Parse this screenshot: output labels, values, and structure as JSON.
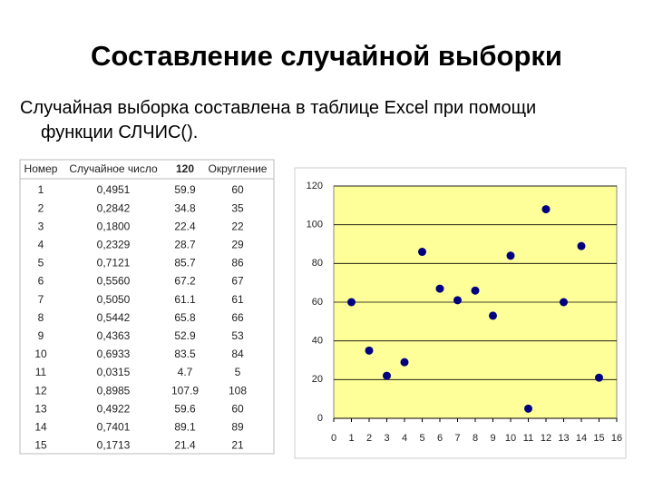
{
  "title": "Составление случайной выборки",
  "body": [
    "Случайная выборка составлена в таблице Excel при помощи",
    "функции СЛЧИС()."
  ],
  "table": {
    "header": [
      "Номер",
      "Случайное число",
      "120",
      "Округление"
    ],
    "rows": [
      [
        "1",
        "0,4951",
        "59.9",
        "60"
      ],
      [
        "2",
        "0,2842",
        "34.8",
        "35"
      ],
      [
        "3",
        "0,1800",
        "22.4",
        "22"
      ],
      [
        "4",
        "0,2329",
        "28.7",
        "29"
      ],
      [
        "5",
        "0,7121",
        "85.7",
        "86"
      ],
      [
        "6",
        "0,5560",
        "67.2",
        "67"
      ],
      [
        "7",
        "0,5050",
        "61.1",
        "61"
      ],
      [
        "8",
        "0,5442",
        "65.8",
        "66"
      ],
      [
        "9",
        "0,4363",
        "52.9",
        "53"
      ],
      [
        "10",
        "0,6933",
        "83.5",
        "84"
      ],
      [
        "11",
        "0,0315",
        "4.7",
        "5"
      ],
      [
        "12",
        "0,8985",
        "107.9",
        "108"
      ],
      [
        "13",
        "0,4922",
        "59.6",
        "60"
      ],
      [
        "14",
        "0,7401",
        "89.1",
        "89"
      ],
      [
        "15",
        "0,1713",
        "21.4",
        "21"
      ]
    ]
  },
  "chart_data": {
    "type": "scatter",
    "x": [
      1,
      2,
      3,
      4,
      5,
      6,
      7,
      8,
      9,
      10,
      11,
      12,
      13,
      14,
      15
    ],
    "series": [
      {
        "color": "#000080",
        "values": [
          60,
          35,
          22,
          29,
          86,
          67,
          61,
          66,
          53,
          84,
          5,
          108,
          60,
          89,
          21
        ]
      }
    ],
    "xlim": [
      0,
      16
    ],
    "xticks": [
      0,
      1,
      2,
      3,
      4,
      5,
      6,
      7,
      8,
      9,
      10,
      11,
      12,
      13,
      14,
      15,
      16
    ],
    "ylim": [
      0,
      120
    ],
    "yticks": [
      0,
      20,
      40,
      60,
      80,
      100,
      120
    ],
    "grid": true,
    "background": "#ffff99"
  }
}
